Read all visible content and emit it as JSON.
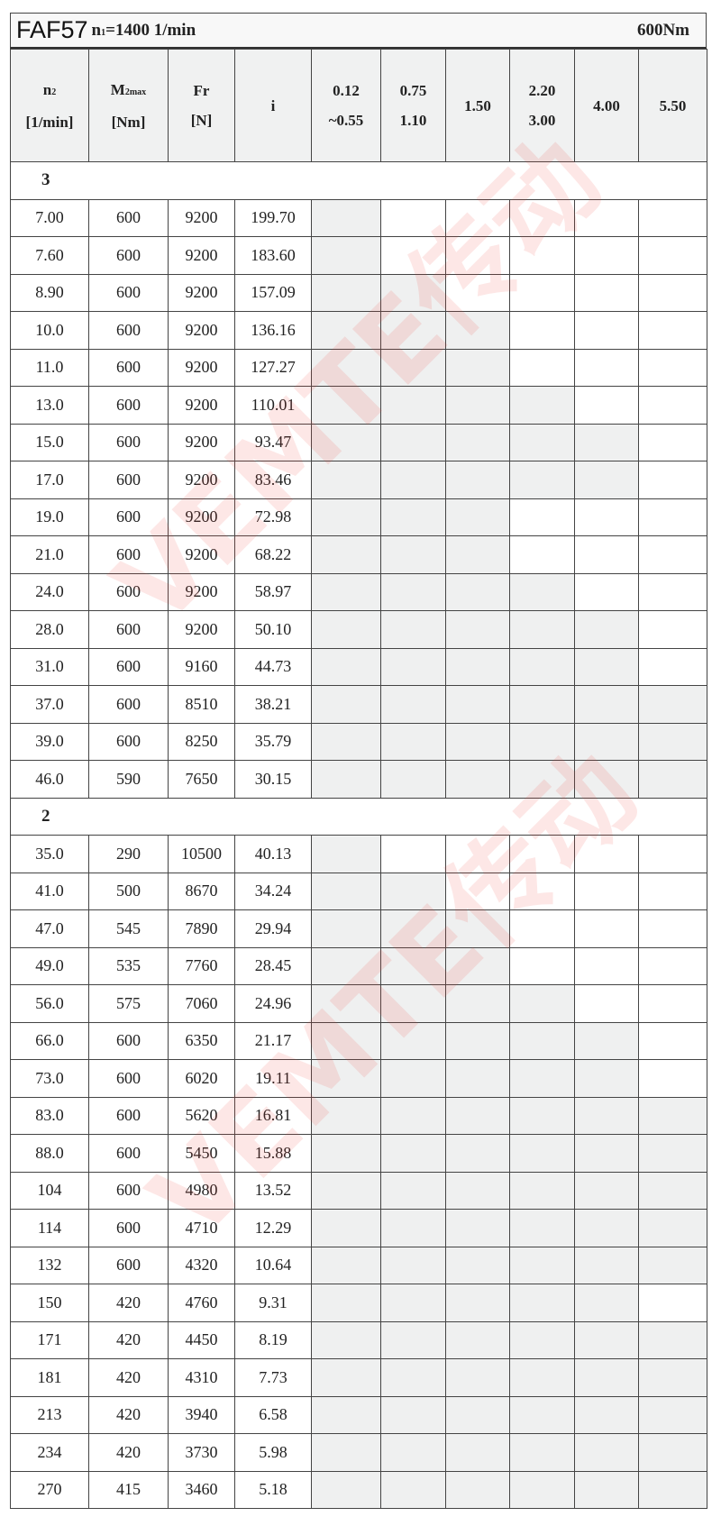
{
  "title": {
    "model": "FAF57",
    "speed_prefix": "n",
    "speed_sub": "1",
    "speed_value": "=1400 1/min",
    "torque": "600Nm"
  },
  "headers": {
    "n2": [
      "n",
      "2",
      "[1/min]"
    ],
    "m2": [
      "M",
      "2max",
      "[Nm]"
    ],
    "fr": [
      "Fr",
      "[N]"
    ],
    "i": "i",
    "powers": [
      [
        "0.12",
        "~0.55"
      ],
      [
        "0.75",
        "1.10"
      ],
      [
        "1.50",
        ""
      ],
      [
        "2.20",
        "3.00"
      ],
      [
        "4.00",
        ""
      ],
      [
        "5.50",
        ""
      ]
    ]
  },
  "watermark": "VEMTE传动",
  "sections": [
    {
      "label": "3",
      "rows": [
        [
          "7.00",
          "600",
          "9200",
          "199.70",
          1
        ],
        [
          "7.60",
          "600",
          "9200",
          "183.60",
          1
        ],
        [
          "8.90",
          "600",
          "9200",
          "157.09",
          2
        ],
        [
          "10.0",
          "600",
          "9200",
          "136.16",
          3
        ],
        [
          "11.0",
          "600",
          "9200",
          "127.27",
          3
        ],
        [
          "13.0",
          "600",
          "9200",
          "110.01",
          4
        ],
        [
          "15.0",
          "600",
          "9200",
          "93.47",
          5
        ],
        [
          "17.0",
          "600",
          "9200",
          "83.46",
          5
        ],
        [
          "19.0",
          "600",
          "9200",
          "72.98",
          3
        ],
        [
          "21.0",
          "600",
          "9200",
          "68.22",
          3
        ],
        [
          "24.0",
          "600",
          "9200",
          "58.97",
          4
        ],
        [
          "28.0",
          "600",
          "9200",
          "50.10",
          5
        ],
        [
          "31.0",
          "600",
          "9160",
          "44.73",
          5
        ],
        [
          "37.0",
          "600",
          "8510",
          "38.21",
          6
        ],
        [
          "39.0",
          "600",
          "8250",
          "35.79",
          6
        ],
        [
          "46.0",
          "590",
          "7650",
          "30.15",
          6
        ]
      ]
    },
    {
      "label": "2",
      "rows": [
        [
          "35.0",
          "290",
          "10500",
          "40.13",
          1
        ],
        [
          "41.0",
          "500",
          "8670",
          "34.24",
          2
        ],
        [
          "47.0",
          "545",
          "7890",
          "29.94",
          3
        ],
        [
          "49.0",
          "535",
          "7760",
          "28.45",
          3
        ],
        [
          "56.0",
          "575",
          "7060",
          "24.96",
          4
        ],
        [
          "66.0",
          "600",
          "6350",
          "21.17",
          5
        ],
        [
          "73.0",
          "600",
          "6020",
          "19.11",
          5
        ],
        [
          "83.0",
          "600",
          "5620",
          "16.81",
          6
        ],
        [
          "88.0",
          "600",
          "5450",
          "15.88",
          6
        ],
        [
          "104",
          "600",
          "4980",
          "13.52",
          6
        ],
        [
          "114",
          "600",
          "4710",
          "12.29",
          6
        ],
        [
          "132",
          "600",
          "4320",
          "10.64",
          6
        ],
        [
          "150",
          "420",
          "4760",
          "9.31",
          5
        ],
        [
          "171",
          "420",
          "4450",
          "8.19",
          6
        ],
        [
          "181",
          "420",
          "4310",
          "7.73",
          6
        ],
        [
          "213",
          "420",
          "3940",
          "6.58",
          6
        ],
        [
          "234",
          "420",
          "3730",
          "5.98",
          6
        ],
        [
          "270",
          "415",
          "3460",
          "5.18",
          6
        ]
      ]
    }
  ]
}
